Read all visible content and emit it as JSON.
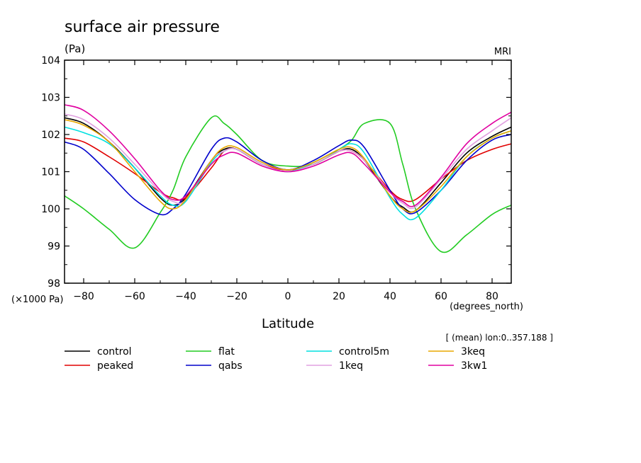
{
  "chart_data": {
    "type": "line",
    "title": "surface air pressure",
    "units": "(Pa)",
    "source": "MRI",
    "multiplier_label": "(×1000 Pa)",
    "xlabel": "Latitude",
    "xunits": "(degrees_north)",
    "subtitle": "[ (mean) lon:0..357.188 ]",
    "xlim": [
      -87.5,
      87.5
    ],
    "ylim": [
      98,
      104
    ],
    "xticks": [
      -80,
      -60,
      -40,
      -20,
      0,
      20,
      40,
      60,
      80
    ],
    "yticks": [
      98,
      99,
      100,
      101,
      102,
      103,
      104
    ],
    "x": [
      -87.5,
      -80,
      -70,
      -60,
      -50,
      -45,
      -40,
      -30,
      -25,
      -20,
      -10,
      0,
      10,
      20,
      25,
      30,
      40,
      45,
      50,
      60,
      70,
      80,
      87.5
    ],
    "series": [
      {
        "name": "control",
        "color": "#000000",
        "values": [
          102.45,
          102.3,
          101.8,
          101.1,
          100.3,
          100.1,
          100.3,
          101.3,
          101.6,
          101.6,
          101.2,
          101.05,
          101.2,
          101.55,
          101.6,
          101.3,
          100.35,
          100.05,
          99.95,
          100.7,
          101.5,
          101.95,
          102.2
        ]
      },
      {
        "name": "peaked",
        "color": "#e00000",
        "values": [
          101.9,
          101.8,
          101.4,
          100.95,
          100.45,
          100.3,
          100.3,
          101.1,
          101.55,
          101.6,
          101.2,
          101.05,
          101.2,
          101.55,
          101.55,
          101.3,
          100.5,
          100.25,
          100.25,
          100.8,
          101.3,
          101.6,
          101.75
        ]
      },
      {
        "name": "flat",
        "color": "#22cc22",
        "values": [
          100.35,
          100.0,
          99.45,
          98.95,
          99.9,
          100.5,
          101.4,
          102.45,
          102.3,
          102.0,
          101.3,
          101.15,
          101.2,
          101.6,
          101.85,
          102.3,
          102.3,
          101.2,
          100.0,
          98.85,
          99.3,
          99.85,
          100.1
        ]
      },
      {
        "name": "qabs",
        "color": "#0000cc",
        "values": [
          101.8,
          101.6,
          100.95,
          100.25,
          99.85,
          100.0,
          100.4,
          101.6,
          101.9,
          101.8,
          101.3,
          101.05,
          101.3,
          101.7,
          101.85,
          101.65,
          100.5,
          100.0,
          99.9,
          100.5,
          101.3,
          101.85,
          102.0
        ]
      },
      {
        "name": "control5m",
        "color": "#00e0e0",
        "values": [
          102.2,
          102.05,
          101.75,
          101.1,
          100.35,
          100.1,
          100.2,
          101.25,
          101.55,
          101.6,
          101.2,
          101.0,
          101.25,
          101.6,
          101.75,
          101.5,
          100.3,
          99.85,
          99.75,
          100.5,
          101.4,
          101.9,
          102.1
        ]
      },
      {
        "name": "1keq",
        "color": "#e0a0e0",
        "values": [
          102.55,
          102.4,
          101.9,
          101.2,
          100.45,
          100.2,
          100.25,
          101.3,
          101.55,
          101.6,
          101.2,
          101.0,
          101.2,
          101.55,
          101.55,
          101.3,
          100.45,
          100.15,
          100.05,
          100.8,
          101.6,
          102.1,
          102.45
        ]
      },
      {
        "name": "3keq",
        "color": "#e8a800",
        "values": [
          102.4,
          102.25,
          101.8,
          101.0,
          100.2,
          100.0,
          100.25,
          101.3,
          101.65,
          101.65,
          101.25,
          101.05,
          101.25,
          101.6,
          101.65,
          101.35,
          100.35,
          100.0,
          99.95,
          100.6,
          101.4,
          101.9,
          102.1
        ]
      },
      {
        "name": "3kw1",
        "color": "#e000a0",
        "values": [
          102.8,
          102.65,
          102.1,
          101.35,
          100.5,
          100.25,
          100.35,
          101.2,
          101.45,
          101.5,
          101.15,
          101.0,
          101.15,
          101.45,
          101.5,
          101.2,
          100.45,
          100.2,
          100.1,
          100.85,
          101.75,
          102.3,
          102.6
        ]
      }
    ]
  }
}
